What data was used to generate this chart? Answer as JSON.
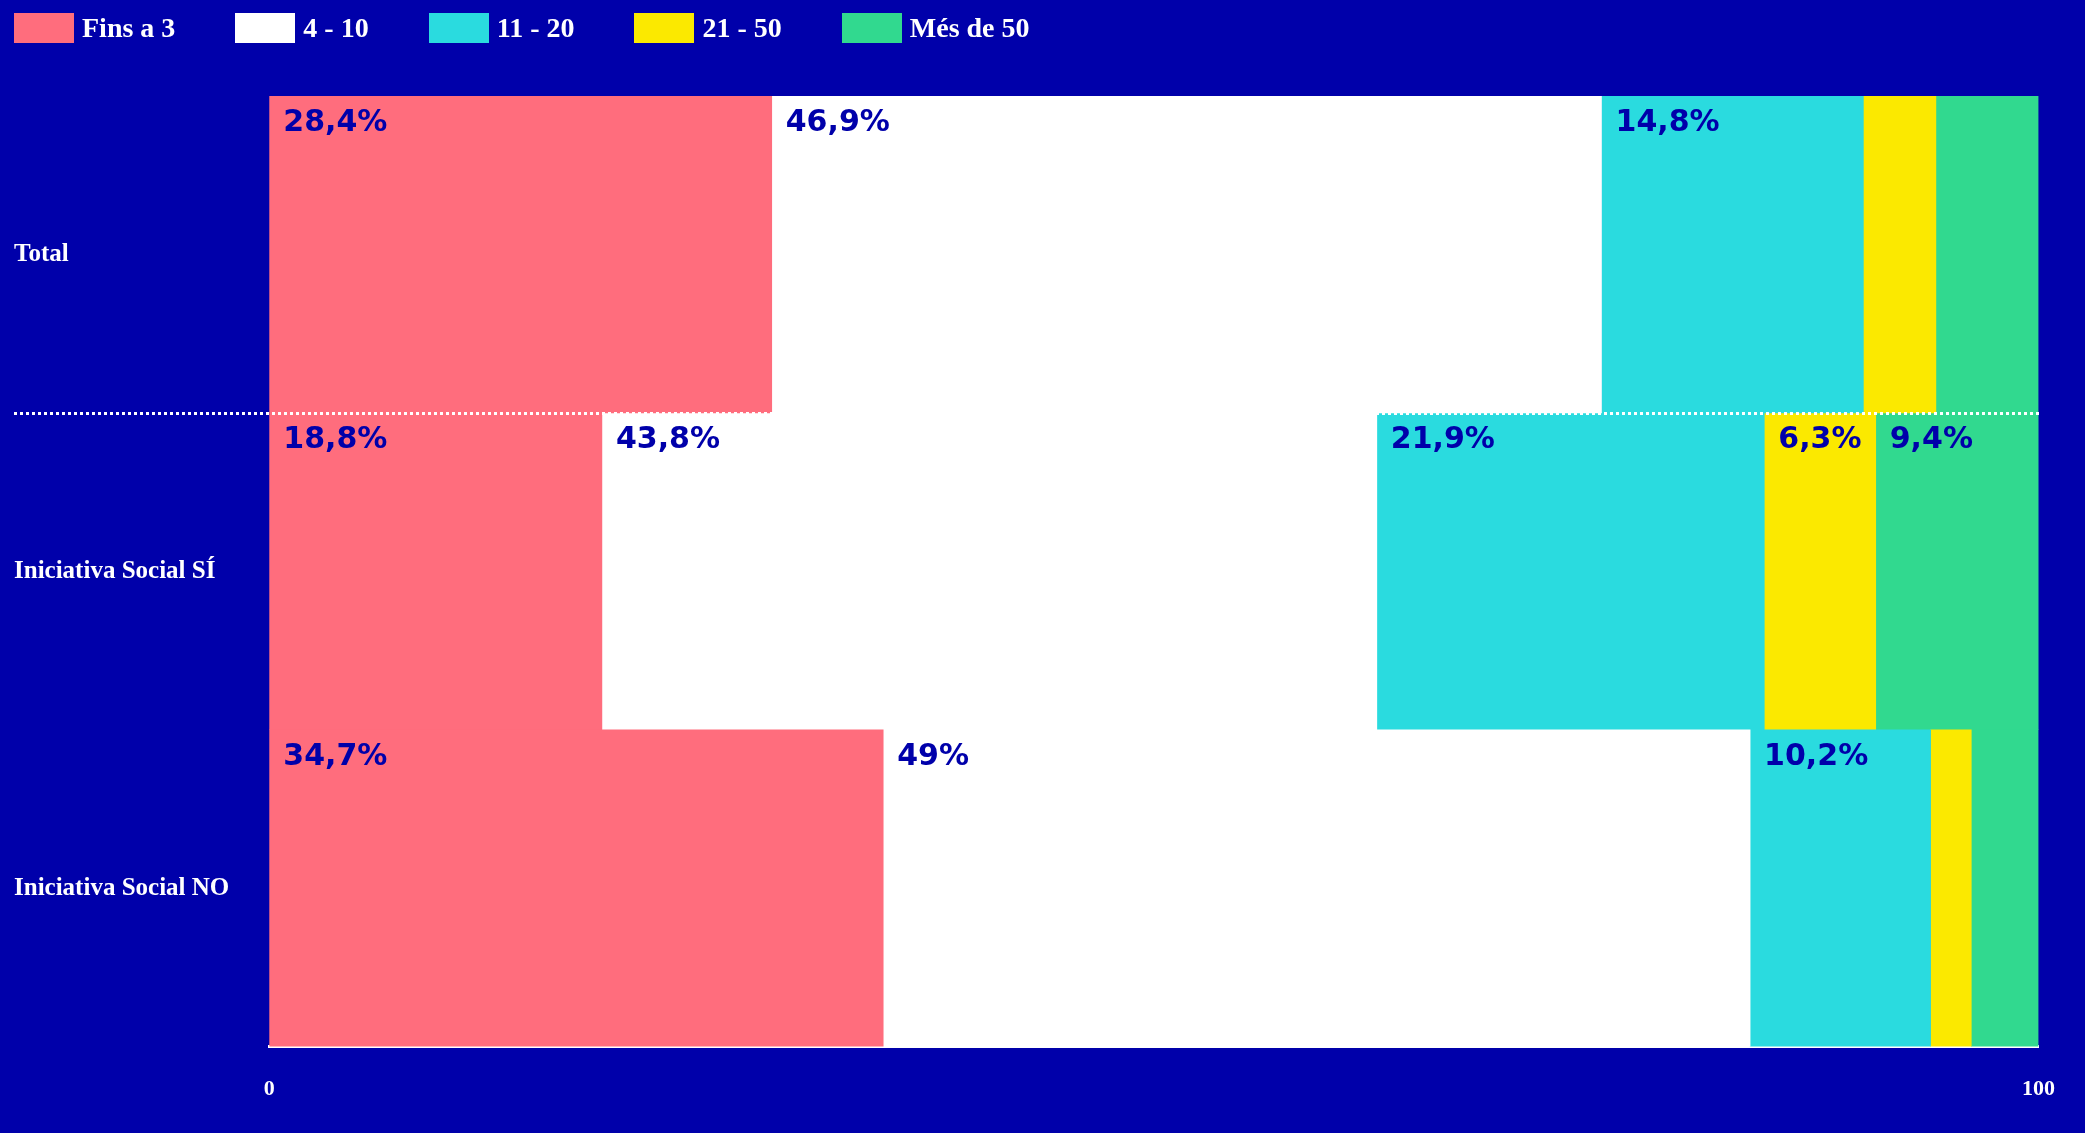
{
  "chart_data": {
    "type": "bar",
    "orientation": "horizontal",
    "stacked": true,
    "categories": [
      "Total",
      "Iniciativa Social SÍ",
      "Iniciativa Social NO"
    ],
    "series": [
      {
        "name": "Fins a 3",
        "color": "#ff6d7d",
        "values": [
          28.4,
          18.8,
          34.7
        ],
        "value_labels": [
          "28,4%",
          "18,8%",
          "34,7%"
        ]
      },
      {
        "name": "4 - 10",
        "color": "#ffffff",
        "values": [
          46.9,
          43.8,
          49
        ],
        "value_labels": [
          "46,9%",
          "43,8%",
          "49%"
        ]
      },
      {
        "name": "11 - 20",
        "color": "#2adbdf",
        "values": [
          14.8,
          21.9,
          10.2
        ],
        "value_labels": [
          "14,8%",
          "21,9%",
          "10,2%"
        ]
      },
      {
        "name": "21 - 50",
        "color": "#fbe900",
        "values": [
          4.1,
          6.3,
          2.3
        ],
        "value_labels": [
          null,
          "6,3%",
          null
        ]
      },
      {
        "name": "Més de 50",
        "color": "#31d98f",
        "values": [
          5.8,
          9.4,
          3.8
        ],
        "value_labels": [
          null,
          "9,4%",
          null
        ]
      }
    ],
    "xlim": [
      0,
      100
    ],
    "xticks": [
      0,
      100
    ],
    "grid": false,
    "legend": "top left"
  }
}
